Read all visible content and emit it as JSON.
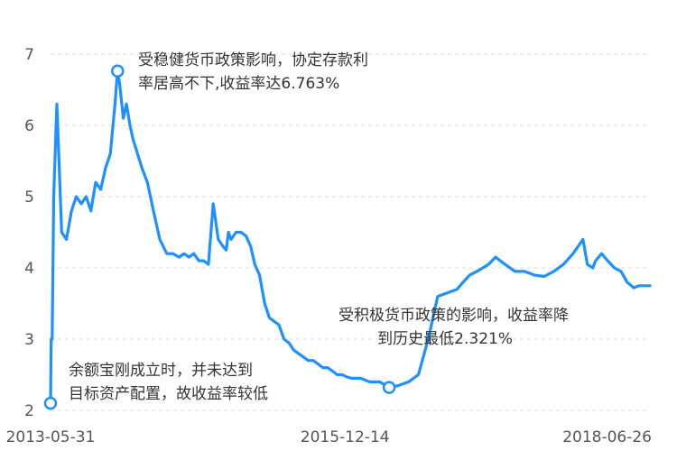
{
  "chart_data": {
    "type": "line",
    "series": [
      {
        "x": [
          "2013-05-31",
          "2013-06-02",
          "2013-06-05",
          "2013-06-10",
          "2013-06-20",
          "2013-07-05",
          "2013-07-20",
          "2013-07-28",
          "2013-08-05",
          "2013-08-20",
          "2013-09-05",
          "2013-09-20",
          "2013-10-05",
          "2013-10-20",
          "2013-11-05",
          "2013-11-20",
          "2013-12-05",
          "2013-12-20",
          "2013-12-28",
          "2014-01-03",
          "2014-01-08",
          "2014-01-15",
          "2014-01-25",
          "2014-02-05",
          "2014-02-15",
          "2014-03-01",
          "2014-03-15",
          "2014-04-01",
          "2014-04-20",
          "2014-05-10",
          "2014-06-01",
          "2014-06-20",
          "2014-07-10",
          "2014-07-25",
          "2014-08-10",
          "2014-08-25",
          "2014-09-10",
          "2014-09-25",
          "2014-10-10",
          "2014-10-25",
          "2014-11-10",
          "2014-11-25",
          "2014-12-05",
          "2014-12-12",
          "2014-12-20",
          "2015-01-05",
          "2015-01-20",
          "2015-02-05",
          "2015-02-20",
          "2015-03-05",
          "2015-03-20",
          "2015-04-05",
          "2015-04-20",
          "2015-05-05",
          "2015-05-20",
          "2015-06-05",
          "2015-06-20",
          "2015-07-05",
          "2015-07-20",
          "2015-08-05",
          "2015-08-20",
          "2015-09-05",
          "2015-09-20",
          "2015-10-05",
          "2015-10-20",
          "2015-11-05",
          "2015-11-20",
          "2015-12-05",
          "2015-12-20",
          "2016-01-05",
          "2016-02-01",
          "2016-03-01",
          "2016-04-01",
          "2016-05-01",
          "2016-06-01",
          "2016-07-01",
          "2016-08-01",
          "2016-09-01",
          "2016-10-01",
          "2016-11-01",
          "2016-12-01",
          "2016-12-20",
          "2017-01-10",
          "2017-02-01",
          "2017-02-20",
          "2017-03-10",
          "2017-04-01",
          "2017-05-01",
          "2017-06-01",
          "2017-07-01",
          "2017-08-01",
          "2017-09-01",
          "2017-10-01",
          "2017-11-01",
          "2017-12-01",
          "2018-01-01",
          "2018-01-15",
          "2018-02-01",
          "2018-02-10",
          "2018-03-01",
          "2018-03-20",
          "2018-04-10",
          "2018-05-01",
          "2018-05-20",
          "2018-06-10",
          "2018-06-26",
          "2018-07-10",
          "2018-07-31"
        ],
        "values": [
          2.1,
          3.0,
          3.0,
          5.0,
          6.3,
          4.5,
          4.4,
          4.6,
          4.8,
          5.0,
          4.9,
          5.0,
          4.8,
          5.2,
          5.1,
          5.4,
          5.6,
          6.3,
          6.763,
          6.6,
          6.4,
          6.1,
          6.3,
          6.0,
          5.8,
          5.6,
          5.4,
          5.2,
          4.8,
          4.4,
          4.2,
          4.2,
          4.15,
          4.2,
          4.15,
          4.2,
          4.1,
          4.1,
          4.05,
          4.9,
          4.4,
          4.3,
          4.25,
          4.5,
          4.4,
          4.5,
          4.5,
          4.45,
          4.3,
          4.05,
          3.9,
          3.5,
          3.3,
          3.25,
          3.2,
          3.0,
          2.95,
          2.85,
          2.8,
          2.75,
          2.7,
          2.7,
          2.65,
          2.6,
          2.6,
          2.55,
          2.5,
          2.5,
          2.47,
          2.45,
          2.45,
          2.4,
          2.4,
          2.321,
          2.35,
          2.4,
          2.5,
          3.0,
          3.6,
          3.65,
          3.7,
          3.8,
          3.9,
          3.95,
          4.0,
          4.05,
          4.15,
          4.05,
          3.95,
          3.95,
          3.9,
          3.88,
          3.95,
          4.05,
          4.2,
          4.4,
          4.05,
          4.0,
          4.1,
          4.2,
          4.1,
          4.0,
          3.95,
          3.8,
          3.72,
          3.75,
          3.75,
          3.75
        ]
      }
    ],
    "ylim": [
      2,
      7
    ],
    "yticks": [
      "2",
      "3",
      "4",
      "5",
      "6",
      "7"
    ],
    "xticks": [
      "2013-05-31",
      "2015-12-14",
      "2018-06-26"
    ],
    "xlim": [
      "2013-05-31",
      "2018-07-31"
    ],
    "grid": true,
    "line_color": "#1e90ff",
    "annotations": [
      {
        "x": "2013-05-31",
        "y": 2.1,
        "lines": [
          "余额宝刚成立时，并未达到",
          "目标资产配置，故收益率较低"
        ]
      },
      {
        "x": "2013-12-28",
        "y": 6.763,
        "lines": [
          "受稳健货币政策影响，协定存款利",
          "率居高不下,收益率达6.763%"
        ]
      },
      {
        "x": "2016-05-01",
        "y": 2.321,
        "lines": [
          "受积极货币政策的影响，收益率降",
          "到历史最低2.321%"
        ]
      }
    ]
  }
}
